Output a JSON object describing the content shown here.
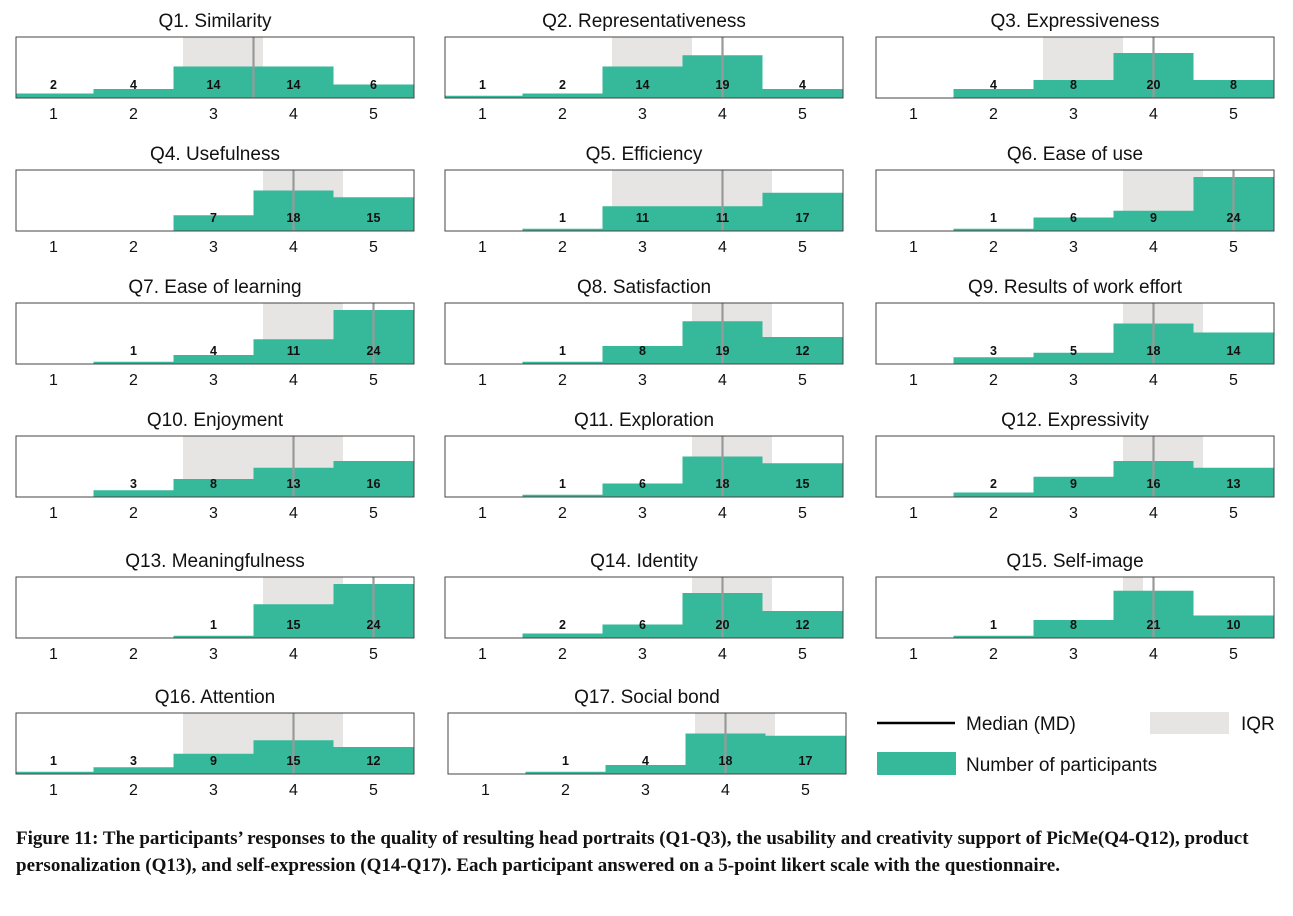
{
  "colors": {
    "bar": "#36b89a",
    "iqr": "#e6e5e4",
    "median": "#999999",
    "median_legend": "#000000"
  },
  "chart_data": [
    {
      "type": "bar",
      "title": "Q1. Similarity",
      "categories": [
        "1",
        "2",
        "3",
        "4",
        "5"
      ],
      "values": [
        2,
        4,
        14,
        14,
        6
      ],
      "median": 3.5,
      "iqr": [
        3,
        4
      ]
    },
    {
      "type": "bar",
      "title": "Q2. Representativeness",
      "categories": [
        "1",
        "2",
        "3",
        "4",
        "5"
      ],
      "values": [
        1,
        2,
        14,
        19,
        4
      ],
      "median": 4,
      "iqr": [
        3,
        4
      ]
    },
    {
      "type": "bar",
      "title": "Q3. Expressiveness",
      "categories": [
        "1",
        "2",
        "3",
        "4",
        "5"
      ],
      "values": [
        null,
        4,
        8,
        20,
        8
      ],
      "median": 4,
      "iqr": [
        3,
        4
      ]
    },
    {
      "type": "bar",
      "title": "Q4. Usefulness",
      "categories": [
        "1",
        "2",
        "3",
        "4",
        "5"
      ],
      "values": [
        null,
        null,
        7,
        18,
        15
      ],
      "median": 4,
      "iqr": [
        4,
        5
      ]
    },
    {
      "type": "bar",
      "title": "Q5. Efficiency",
      "categories": [
        "1",
        "2",
        "3",
        "4",
        "5"
      ],
      "values": [
        null,
        1,
        11,
        11,
        17
      ],
      "median": 4,
      "iqr": [
        3,
        5
      ]
    },
    {
      "type": "bar",
      "title": "Q6. Ease of use",
      "categories": [
        "1",
        "2",
        "3",
        "4",
        "5"
      ],
      "values": [
        null,
        1,
        6,
        9,
        24
      ],
      "median": 5,
      "iqr": [
        4,
        5
      ]
    },
    {
      "type": "bar",
      "title": "Q7. Ease of learning",
      "categories": [
        "1",
        "2",
        "3",
        "4",
        "5"
      ],
      "values": [
        null,
        1,
        4,
        11,
        24
      ],
      "median": 5,
      "iqr": [
        4,
        5
      ]
    },
    {
      "type": "bar",
      "title": "Q8. Satisfaction",
      "categories": [
        "1",
        "2",
        "3",
        "4",
        "5"
      ],
      "values": [
        null,
        1,
        8,
        19,
        12
      ],
      "median": 4,
      "iqr": [
        4,
        5
      ]
    },
    {
      "type": "bar",
      "title": "Q9. Results of work effort",
      "categories": [
        "1",
        "2",
        "3",
        "4",
        "5"
      ],
      "values": [
        null,
        3,
        5,
        18,
        14
      ],
      "median": 4,
      "iqr": [
        4,
        5
      ]
    },
    {
      "type": "bar",
      "title": "Q10. Enjoyment",
      "categories": [
        "1",
        "2",
        "3",
        "4",
        "5"
      ],
      "values": [
        null,
        3,
        8,
        13,
        16
      ],
      "median": 4,
      "iqr": [
        3,
        5
      ]
    },
    {
      "type": "bar",
      "title": "Q11. Exploration",
      "categories": [
        "1",
        "2",
        "3",
        "4",
        "5"
      ],
      "values": [
        null,
        1,
        6,
        18,
        15
      ],
      "median": 4,
      "iqr": [
        4,
        5
      ]
    },
    {
      "type": "bar",
      "title": "Q12. Expressivity",
      "categories": [
        "1",
        "2",
        "3",
        "4",
        "5"
      ],
      "values": [
        null,
        2,
        9,
        16,
        13
      ],
      "median": 4,
      "iqr": [
        4,
        5
      ]
    },
    {
      "type": "bar",
      "title": "Q13. Meaningfulness",
      "categories": [
        "1",
        "2",
        "3",
        "4",
        "5"
      ],
      "values": [
        null,
        null,
        1,
        15,
        24
      ],
      "median": 5,
      "iqr": [
        4,
        5
      ]
    },
    {
      "type": "bar",
      "title": "Q14. Identity",
      "categories": [
        "1",
        "2",
        "3",
        "4",
        "5"
      ],
      "values": [
        null,
        2,
        6,
        20,
        12
      ],
      "median": 4,
      "iqr": [
        4,
        5
      ]
    },
    {
      "type": "bar",
      "title": "Q15. Self-image",
      "categories": [
        "1",
        "2",
        "3",
        "4",
        "5"
      ],
      "values": [
        null,
        1,
        8,
        21,
        10
      ],
      "median": 4,
      "iqr": [
        4,
        4.25
      ]
    },
    {
      "type": "bar",
      "title": "Q16. Attention",
      "categories": [
        "1",
        "2",
        "3",
        "4",
        "5"
      ],
      "values": [
        1,
        3,
        9,
        15,
        12
      ],
      "median": 4,
      "iqr": [
        3,
        5
      ]
    },
    {
      "type": "bar",
      "title": "Q17. Social bond",
      "categories": [
        "1",
        "2",
        "3",
        "4",
        "5"
      ],
      "values": [
        null,
        1,
        4,
        18,
        17
      ],
      "median": 4,
      "iqr": [
        4,
        5
      ]
    }
  ],
  "legend": {
    "median": "Median (MD)",
    "iqr": "IQR",
    "participants": "Number of participants"
  },
  "caption": "Figure 11: The participants’ responses to the quality of resulting head portraits (Q1-Q3), the usability and creativity support of PicMe(Q4-Q12), product personalization (Q13), and self-expression (Q14-Q17). Each participant answered on a 5-point likert scale with the questionnaire."
}
